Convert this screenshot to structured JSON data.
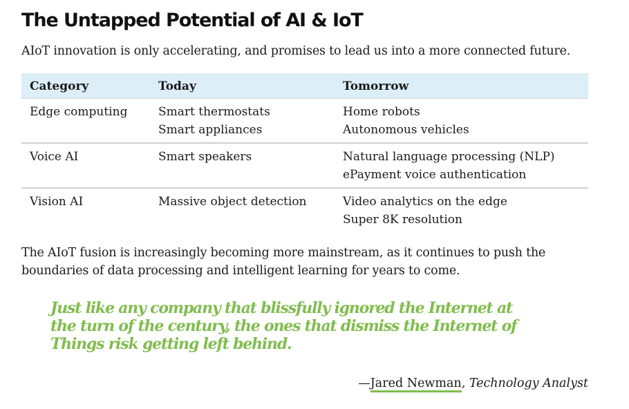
{
  "article": {
    "title": "The Untapped Potential of AI & IoT",
    "intro": "AIoT innovation is only accelerating, and promises to lead us into a more connected future."
  },
  "table": {
    "headers": [
      "Category",
      "Today",
      "Tomorrow"
    ],
    "rows": [
      {
        "category": "Edge computing",
        "today": [
          "Smart thermostats",
          "Smart appliances"
        ],
        "tomorrow": [
          "Home robots",
          "Autonomous vehicles"
        ]
      },
      {
        "category": "Voice AI",
        "today": [
          "Smart speakers"
        ],
        "tomorrow": [
          "Natural language processing (NLP)",
          "ePayment voice authentication"
        ]
      },
      {
        "category": "Vision AI",
        "today": [
          "Massive object detection"
        ],
        "tomorrow": [
          "Video analytics on the edge",
          "Super 8K resolution"
        ]
      }
    ]
  },
  "closing": [
    "The AIoT fusion is increasingly becoming more mainstream, as it continues to push the",
    "boundaries of data processing and intelligent learning for years to come."
  ],
  "quote": {
    "lines": [
      "Just like any company that blissfully ignored the Internet at",
      "the turn of the century, the ones that dismiss the Internet of",
      "Things risk getting left behind."
    ],
    "dash": "—",
    "author": "Jared Newman",
    "role": ", Technology Analyst"
  },
  "colors": {
    "table_header_bg": "#dceef8",
    "quote_green": "#80bd4e",
    "text": "#1a1a1a"
  }
}
